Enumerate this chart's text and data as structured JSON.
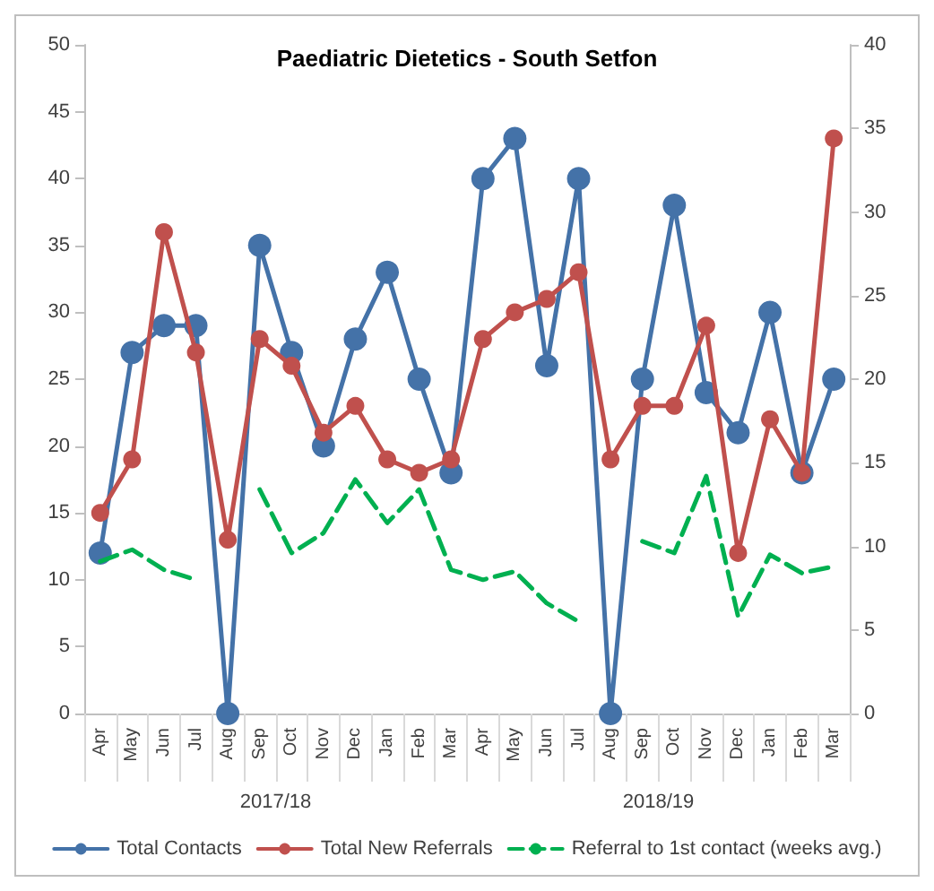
{
  "chart_data": {
    "type": "line",
    "title": "Paediatric Dietetics - South Setfon",
    "categories": [
      "Apr",
      "May",
      "Jun",
      "Jul",
      "Aug",
      "Sep",
      "Oct",
      "Nov",
      "Dec",
      "Jan",
      "Feb",
      "Mar",
      "Apr",
      "May",
      "Jun",
      "Jul",
      "Aug",
      "Sep",
      "Oct",
      "Nov",
      "Dec",
      "Jan",
      "Feb",
      "Mar"
    ],
    "series": [
      {
        "name": "Total Contacts",
        "color": "#4472a8",
        "marker": "circle",
        "line_style": "solid",
        "values": [
          12,
          27,
          29,
          29,
          0,
          35,
          27,
          20,
          28,
          33,
          25,
          18,
          40,
          43,
          26,
          40,
          0,
          25,
          38,
          24,
          21,
          30,
          18,
          25
        ]
      },
      {
        "name": "Total New Referrals",
        "color": "#c0504d",
        "marker": "circle",
        "line_style": "solid",
        "values": [
          15,
          19,
          36,
          27,
          13,
          28,
          26,
          21,
          23,
          19,
          18,
          19,
          28,
          30,
          31,
          33,
          19,
          23,
          23,
          29,
          12,
          22,
          18,
          43
        ]
      },
      {
        "name": "Referral to 1st contact (weeks avg.)",
        "color": "#00b050",
        "marker": "none",
        "line_style": "dashed",
        "axis": "y2",
        "values": [
          9.1,
          9.8,
          8.6,
          8.0,
          null,
          13.4,
          9.6,
          10.8,
          14.0,
          11.4,
          13.4,
          8.6,
          8.0,
          8.5,
          6.6,
          5.5,
          null,
          10.3,
          9.6,
          14.2,
          5.8,
          9.5,
          8.4,
          8.8
        ]
      }
    ],
    "ylim": [
      0,
      50
    ],
    "yticks": [
      0,
      5,
      10,
      15,
      20,
      25,
      30,
      35,
      40,
      45,
      50
    ],
    "y2lim": [
      0,
      40
    ],
    "y2ticks": [
      0,
      5,
      10,
      15,
      20,
      25,
      30,
      35,
      40
    ],
    "annotations": [
      "2017/18",
      "2018/19"
    ],
    "grid": false,
    "legend": "bottom"
  }
}
